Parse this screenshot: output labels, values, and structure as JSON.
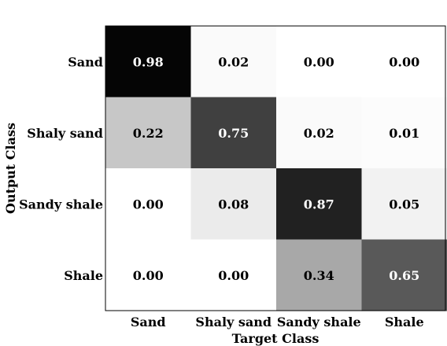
{
  "chart_data": {
    "type": "heatmap",
    "title": "",
    "xlabel": "Target Class",
    "ylabel": "Output Class",
    "x_categories": [
      "Sand",
      "Shaly sand",
      "Sandy shale",
      "Shale"
    ],
    "y_categories": [
      "Sand",
      "Shaly sand",
      "Sandy shale",
      "Shale"
    ],
    "values": [
      [
        0.98,
        0.02,
        0.0,
        0.0
      ],
      [
        0.22,
        0.75,
        0.02,
        0.01
      ],
      [
        0.0,
        0.08,
        0.87,
        0.05
      ],
      [
        0.0,
        0.0,
        0.34,
        0.65
      ]
    ],
    "cell_labels": [
      [
        "0.98",
        "0.02",
        "0.00",
        "0.00"
      ],
      [
        "0.22",
        "0.75",
        "0.02",
        "0.01"
      ],
      [
        "0.00",
        "0.08",
        "0.87",
        "0.05"
      ],
      [
        "0.00",
        "0.00",
        "0.34",
        "0.65"
      ]
    ],
    "value_range": [
      0,
      1
    ],
    "colormap": {
      "low": "#ffffff",
      "high": "#000000"
    },
    "grid": false,
    "colorbar": false
  }
}
